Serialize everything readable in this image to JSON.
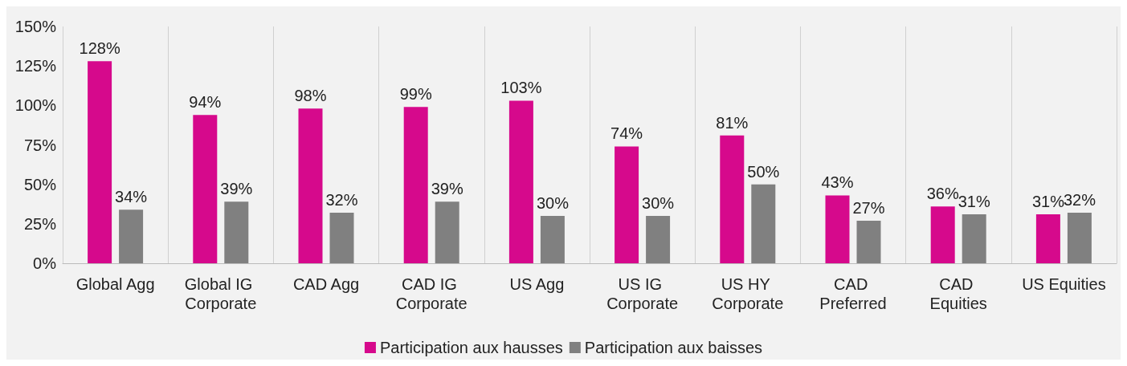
{
  "chart_data": {
    "type": "bar",
    "categories": [
      "Global Agg",
      "Global IG Corporate",
      "CAD Agg",
      "CAD IG Corporate",
      "US Agg",
      "US IG Corporate",
      "US HY Corporate",
      "CAD Preferred",
      "CAD Equities",
      "US Equities"
    ],
    "series": [
      {
        "name": "Participation aux hausses",
        "color": "#d6098c",
        "values": [
          128,
          94,
          98,
          99,
          103,
          74,
          81,
          43,
          36,
          31
        ],
        "value_labels": [
          "128%",
          "94%",
          "98%",
          "99%",
          "103%",
          "74%",
          "81%",
          "43%",
          "36%",
          "31%"
        ]
      },
      {
        "name": "Participation aux baisses",
        "color": "#808080",
        "values": [
          34,
          39,
          32,
          39,
          30,
          30,
          50,
          27,
          31,
          32
        ],
        "value_labels": [
          "34%",
          "39%",
          "32%",
          "39%",
          "30%",
          "30%",
          "50%",
          "27%",
          "31%",
          "32%"
        ]
      }
    ],
    "ylim": [
      0,
      150
    ],
    "yticks": [
      {
        "value": 0,
        "label": "0%"
      },
      {
        "value": 25,
        "label": "25%"
      },
      {
        "value": 50,
        "label": "50%"
      },
      {
        "value": 75,
        "label": "75%"
      },
      {
        "value": 100,
        "label": "100%"
      },
      {
        "value": 125,
        "label": "125%"
      },
      {
        "value": 150,
        "label": "150%"
      }
    ],
    "grid": "x",
    "legend": "bottom"
  }
}
